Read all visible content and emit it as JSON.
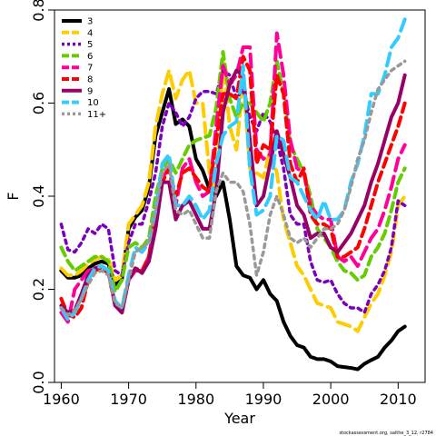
{
  "chart_data": {
    "type": "line",
    "title": "",
    "xlabel": "Year",
    "ylabel": "F",
    "xlim": [
      1959,
      2014
    ],
    "ylim": [
      0,
      0.8
    ],
    "xticks": [
      1960,
      1970,
      1980,
      1990,
      2000,
      2010
    ],
    "yticks": [
      0.0,
      0.2,
      0.4,
      0.6,
      0.8
    ],
    "ytick_labels": [
      "0.0",
      "0.2",
      "0.4",
      "0.6",
      "0.8"
    ],
    "grid": false,
    "legend_position": "top-left",
    "credit": "stockassessment.org, saithe_3_12, r2784",
    "x": [
      1960,
      1961,
      1962,
      1963,
      1964,
      1965,
      1966,
      1967,
      1968,
      1969,
      1970,
      1971,
      1972,
      1973,
      1974,
      1975,
      1976,
      1977,
      1978,
      1979,
      1980,
      1981,
      1982,
      1983,
      1984,
      1985,
      1986,
      1987,
      1988,
      1989,
      1990,
      1991,
      1992,
      1993,
      1994,
      1995,
      1996,
      1997,
      1998,
      1999,
      2000,
      2001,
      2002,
      2003,
      2004,
      2005,
      2006,
      2007,
      2008,
      2009,
      2010,
      2011
    ],
    "series": [
      {
        "name": "3",
        "color": "#000000",
        "dash": "solid",
        "width": 4,
        "values": [
          0.24,
          0.225,
          0.225,
          0.23,
          0.245,
          0.255,
          0.26,
          0.255,
          0.21,
          0.22,
          0.33,
          0.355,
          0.37,
          0.42,
          0.53,
          0.58,
          0.63,
          0.555,
          0.565,
          0.55,
          0.48,
          0.455,
          0.415,
          0.4,
          0.43,
          0.35,
          0.25,
          0.23,
          0.225,
          0.2,
          0.22,
          0.19,
          0.175,
          0.13,
          0.1,
          0.08,
          0.075,
          0.055,
          0.05,
          0.05,
          0.045,
          0.035,
          0.033,
          0.031,
          0.028,
          0.04,
          0.048,
          0.055,
          0.075,
          0.09,
          0.11,
          0.12
        ]
      },
      {
        "name": "4",
        "color": "#ffcc00",
        "dash": "long",
        "width": 4,
        "values": [
          0.245,
          0.23,
          0.23,
          0.24,
          0.255,
          0.265,
          0.27,
          0.265,
          0.22,
          0.23,
          0.34,
          0.36,
          0.38,
          0.43,
          0.55,
          0.62,
          0.67,
          0.61,
          0.65,
          0.67,
          0.6,
          0.6,
          0.45,
          0.41,
          0.69,
          0.55,
          0.5,
          0.65,
          0.46,
          0.45,
          0.44,
          0.5,
          0.45,
          0.35,
          0.3,
          0.25,
          0.23,
          0.2,
          0.17,
          0.165,
          0.16,
          0.13,
          0.125,
          0.12,
          0.11,
          0.14,
          0.17,
          0.19,
          0.23,
          0.28,
          0.38,
          0.4
        ]
      },
      {
        "name": "5",
        "color": "#7b00bb",
        "dash": "dot",
        "width": 3.5,
        "values": [
          0.34,
          0.285,
          0.28,
          0.3,
          0.33,
          0.32,
          0.34,
          0.33,
          0.24,
          0.23,
          0.3,
          0.34,
          0.34,
          0.39,
          0.45,
          0.55,
          0.6,
          0.58,
          0.55,
          0.57,
          0.61,
          0.625,
          0.625,
          0.62,
          0.67,
          0.66,
          0.61,
          0.63,
          0.57,
          0.54,
          0.58,
          0.56,
          0.52,
          0.46,
          0.36,
          0.34,
          0.34,
          0.26,
          0.22,
          0.215,
          0.22,
          0.19,
          0.17,
          0.16,
          0.16,
          0.15,
          0.19,
          0.21,
          0.24,
          0.29,
          0.39,
          0.38
        ]
      },
      {
        "name": "6",
        "color": "#66cc00",
        "dash": "medium",
        "width": 4,
        "values": [
          0.29,
          0.26,
          0.24,
          0.25,
          0.26,
          0.27,
          0.27,
          0.26,
          0.195,
          0.22,
          0.29,
          0.3,
          0.29,
          0.31,
          0.4,
          0.46,
          0.48,
          0.45,
          0.48,
          0.51,
          0.52,
          0.525,
          0.53,
          0.59,
          0.71,
          0.61,
          0.57,
          0.6,
          0.6,
          0.58,
          0.56,
          0.6,
          0.69,
          0.62,
          0.51,
          0.48,
          0.45,
          0.4,
          0.33,
          0.31,
          0.29,
          0.26,
          0.24,
          0.235,
          0.22,
          0.23,
          0.27,
          0.29,
          0.32,
          0.37,
          0.43,
          0.46
        ]
      },
      {
        "name": "7",
        "color": "#ff0099",
        "dash": "long",
        "width": 4,
        "values": [
          0.15,
          0.13,
          0.2,
          0.22,
          0.24,
          0.245,
          0.25,
          0.24,
          0.165,
          0.15,
          0.22,
          0.24,
          0.24,
          0.27,
          0.36,
          0.44,
          0.46,
          0.38,
          0.46,
          0.48,
          0.43,
          0.4,
          0.41,
          0.55,
          0.68,
          0.64,
          0.66,
          0.72,
          0.72,
          0.5,
          0.48,
          0.49,
          0.75,
          0.66,
          0.52,
          0.46,
          0.45,
          0.38,
          0.36,
          0.35,
          0.35,
          0.27,
          0.26,
          0.27,
          0.25,
          0.28,
          0.31,
          0.33,
          0.37,
          0.42,
          0.48,
          0.51
        ]
      },
      {
        "name": "8",
        "color": "#ff0000",
        "dash": "medium",
        "width": 4,
        "values": [
          0.18,
          0.145,
          0.14,
          0.16,
          0.22,
          0.24,
          0.245,
          0.235,
          0.165,
          0.15,
          0.22,
          0.245,
          0.24,
          0.27,
          0.36,
          0.43,
          0.46,
          0.4,
          0.45,
          0.46,
          0.44,
          0.42,
          0.41,
          0.52,
          0.62,
          0.62,
          0.61,
          0.7,
          0.67,
          0.47,
          0.51,
          0.5,
          0.66,
          0.62,
          0.47,
          0.43,
          0.46,
          0.36,
          0.34,
          0.34,
          0.33,
          0.27,
          0.27,
          0.28,
          0.29,
          0.33,
          0.38,
          0.43,
          0.47,
          0.51,
          0.55,
          0.6
        ]
      },
      {
        "name": "9",
        "color": "#990066",
        "dash": "solid",
        "width": 4,
        "values": [
          0.165,
          0.15,
          0.155,
          0.19,
          0.23,
          0.245,
          0.25,
          0.24,
          0.165,
          0.15,
          0.22,
          0.245,
          0.235,
          0.26,
          0.33,
          0.43,
          0.43,
          0.35,
          0.38,
          0.39,
          0.36,
          0.33,
          0.33,
          0.41,
          0.58,
          0.64,
          0.67,
          0.66,
          0.52,
          0.38,
          0.4,
          0.47,
          0.54,
          0.49,
          0.44,
          0.38,
          0.36,
          0.31,
          0.32,
          0.32,
          0.29,
          0.28,
          0.3,
          0.32,
          0.35,
          0.38,
          0.43,
          0.47,
          0.52,
          0.57,
          0.6,
          0.66
        ]
      },
      {
        "name": "10",
        "color": "#33ccff",
        "dash": "long",
        "width": 4,
        "values": [
          0.16,
          0.135,
          0.15,
          0.18,
          0.22,
          0.245,
          0.25,
          0.24,
          0.175,
          0.16,
          0.23,
          0.29,
          0.28,
          0.3,
          0.37,
          0.47,
          0.49,
          0.38,
          0.38,
          0.4,
          0.38,
          0.35,
          0.37,
          0.47,
          0.53,
          0.55,
          0.56,
          0.68,
          0.46,
          0.36,
          0.37,
          0.4,
          0.53,
          0.52,
          0.44,
          0.43,
          0.4,
          0.37,
          0.35,
          0.39,
          0.35,
          0.35,
          0.37,
          0.43,
          0.47,
          0.53,
          0.62,
          0.62,
          0.66,
          0.72,
          0.74,
          0.78
        ]
      },
      {
        "name": "11+",
        "color": "#999999",
        "dash": "dot",
        "width": 3.5,
        "values": [
          0.16,
          0.145,
          0.155,
          0.18,
          0.21,
          0.235,
          0.24,
          0.23,
          0.17,
          0.16,
          0.22,
          0.28,
          0.29,
          0.3,
          0.37,
          0.45,
          0.47,
          0.37,
          0.36,
          0.37,
          0.34,
          0.31,
          0.31,
          0.41,
          0.45,
          0.43,
          0.43,
          0.41,
          0.34,
          0.23,
          0.28,
          0.36,
          0.4,
          0.36,
          0.31,
          0.3,
          0.31,
          0.29,
          0.31,
          0.33,
          0.33,
          0.34,
          0.37,
          0.42,
          0.48,
          0.52,
          0.58,
          0.63,
          0.65,
          0.67,
          0.68,
          0.69
        ]
      }
    ]
  }
}
